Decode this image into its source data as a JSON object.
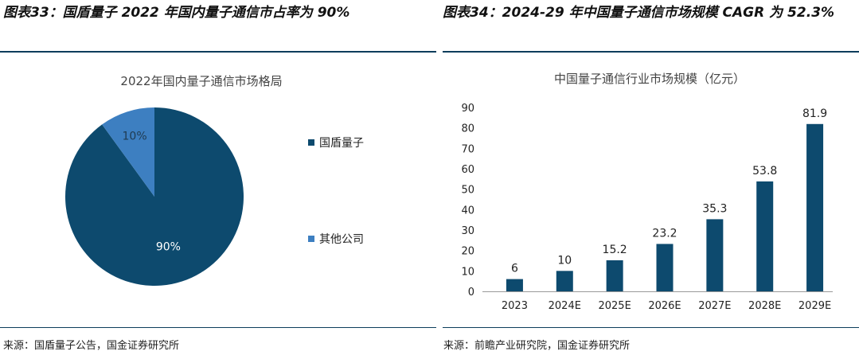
{
  "left_panel": {
    "figure_title": "图表33：国盾量子 2022 年国内量子通信市占率为 90%",
    "source": "来源：国盾量子公告，国金证券研究所"
  },
  "right_panel": {
    "figure_title": "图表34：2024-29 年中国量子通信市场规模 CAGR 为 52.3%",
    "source": "来源：前瞻产业研究院，国金证券研究所"
  },
  "chart_data": [
    {
      "type": "pie",
      "title": "2022年国内量子通信市场格局",
      "slices": [
        {
          "label": "国盾量子",
          "value": 90,
          "data_label": "90%",
          "color": "#0d4a6e"
        },
        {
          "label": "其他公司",
          "value": 10,
          "data_label": "10%",
          "color": "#3d7fc1"
        }
      ],
      "legend_position": "right"
    },
    {
      "type": "bar",
      "title": "中国量子通信行业市场规模（亿元）",
      "categories": [
        "2023",
        "2024E",
        "2025E",
        "2026E",
        "2027E",
        "2028E",
        "2029E"
      ],
      "values": [
        6,
        10,
        15.2,
        23.2,
        35.3,
        53.8,
        81.9
      ],
      "data_labels": [
        "6",
        "10",
        "15.2",
        "23.2",
        "35.3",
        "53.8",
        "81.9"
      ],
      "ylim": [
        0,
        90
      ],
      "yticks": [
        0,
        10,
        20,
        30,
        40,
        50,
        60,
        70,
        80,
        90
      ],
      "color": "#0d4a6e",
      "grid": false
    }
  ]
}
